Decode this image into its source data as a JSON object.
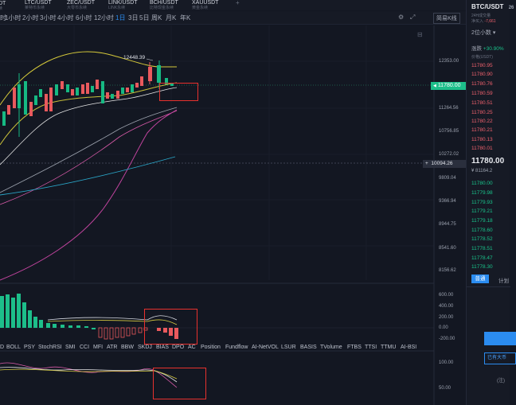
{
  "top_tickers": [
    {
      "symbol": "LTC/USDT",
      "sub": "莱特币永续"
    },
    {
      "symbol": "ZEC/USDT",
      "sub": "大零币永续"
    },
    {
      "symbol": "LINK/USDT",
      "sub": "LINK永续"
    },
    {
      "symbol": "BCH/USDT",
      "sub": "比特现金永续"
    },
    {
      "symbol": "XAUUSDT",
      "sub": "黄金永续"
    }
  ],
  "timeframes": [
    "1小时",
    "2小时",
    "3小时",
    "4小时",
    "6小时",
    "12小时",
    "1日",
    "3日",
    "5日",
    "周K",
    "月K",
    "年K"
  ],
  "active_timeframe": "1日",
  "price_axis": [
    "12353.00",
    "11264.56",
    "10756.85",
    "10272.02",
    "9809.04",
    "9366.94",
    "8944.75",
    "8541.60",
    "8156.62"
  ],
  "current_price_tag": "11780.00",
  "crosshair_price": "10094.26",
  "high_annotation": "12448.39",
  "macd_axis": [
    "600.00",
    "400.00",
    "200.00",
    "0.00",
    "-200.00"
  ],
  "kdj_axis": [
    "100.00",
    "50.00"
  ],
  "indicator_tabs": [
    "D",
    "BOLL",
    "PSY",
    "StochRSI",
    "SMI",
    "CCI",
    "MFI",
    "ATR",
    "BBW",
    "SKDJ",
    "BIAS",
    "DPO",
    "AC",
    "Position",
    "Fundflow",
    "AI-NetVOL",
    "LSUR",
    "BASIS",
    "TVolume",
    "FTBS",
    "TTSI",
    "TTMU",
    "AI-BSI"
  ],
  "chart_style_button": "简易K线",
  "right_panel": {
    "pair": "BTC/USDT",
    "pair_suffix": "26",
    "sub_line1": "24H成交量",
    "sub_line2": "净买入",
    "net_value": "-7,661",
    "decimals_label": "2位小数",
    "rate_label": "涨跌",
    "rate_value": "+30.90%",
    "price_col_label": "价格(USDT)",
    "asks": [
      "11780.95",
      "11780.90",
      "11780.76",
      "11780.59",
      "11780.51",
      "11780.25",
      "11780.22",
      "11780.21",
      "11780.13",
      "11780.01"
    ],
    "last_price": "11780.00",
    "last_price_cny": "¥ 81164.2",
    "bids": [
      "11780.00",
      "11779.98",
      "11779.93",
      "11779.21",
      "11779.18",
      "11778.60",
      "11778.52",
      "11778.51",
      "11778.47",
      "11778.30"
    ],
    "tab_active": "普通",
    "tab_other": "计划",
    "holding_btn": "已有大币",
    "bottom_note": "(注)"
  }
}
